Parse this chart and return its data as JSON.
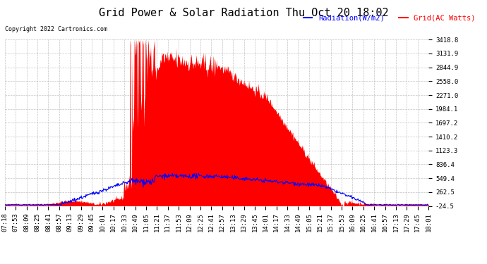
{
  "title": "Grid Power & Solar Radiation Thu Oct 20 18:02",
  "copyright_text": "Copyright 2022 Cartronics.com",
  "legend_radiation": "Radiation(W/m2)",
  "legend_grid": "Grid(AC Watts)",
  "yticks": [
    -24.5,
    262.5,
    549.4,
    836.4,
    1123.3,
    1410.2,
    1697.2,
    1984.1,
    2271.0,
    2558.0,
    2844.9,
    3131.9,
    3418.8
  ],
  "ylim": [
    -24.5,
    3418.8
  ],
  "xtick_labels": [
    "07:18",
    "07:53",
    "08:09",
    "08:25",
    "08:41",
    "08:57",
    "09:13",
    "09:29",
    "09:45",
    "10:01",
    "10:17",
    "10:33",
    "10:49",
    "11:05",
    "11:21",
    "11:37",
    "11:53",
    "12:09",
    "12:25",
    "12:41",
    "12:57",
    "13:13",
    "13:29",
    "13:45",
    "14:01",
    "14:17",
    "14:33",
    "14:49",
    "15:05",
    "15:21",
    "15:37",
    "15:53",
    "16:09",
    "16:25",
    "16:41",
    "16:57",
    "17:13",
    "17:29",
    "17:45",
    "18:01"
  ],
  "background_color": "#ffffff",
  "grid_color": "#aaaaaa",
  "red_color": "#ff0000",
  "blue_color": "#0000ff",
  "title_fontsize": 11,
  "tick_fontsize": 6.5,
  "label_fontsize": 7.5
}
